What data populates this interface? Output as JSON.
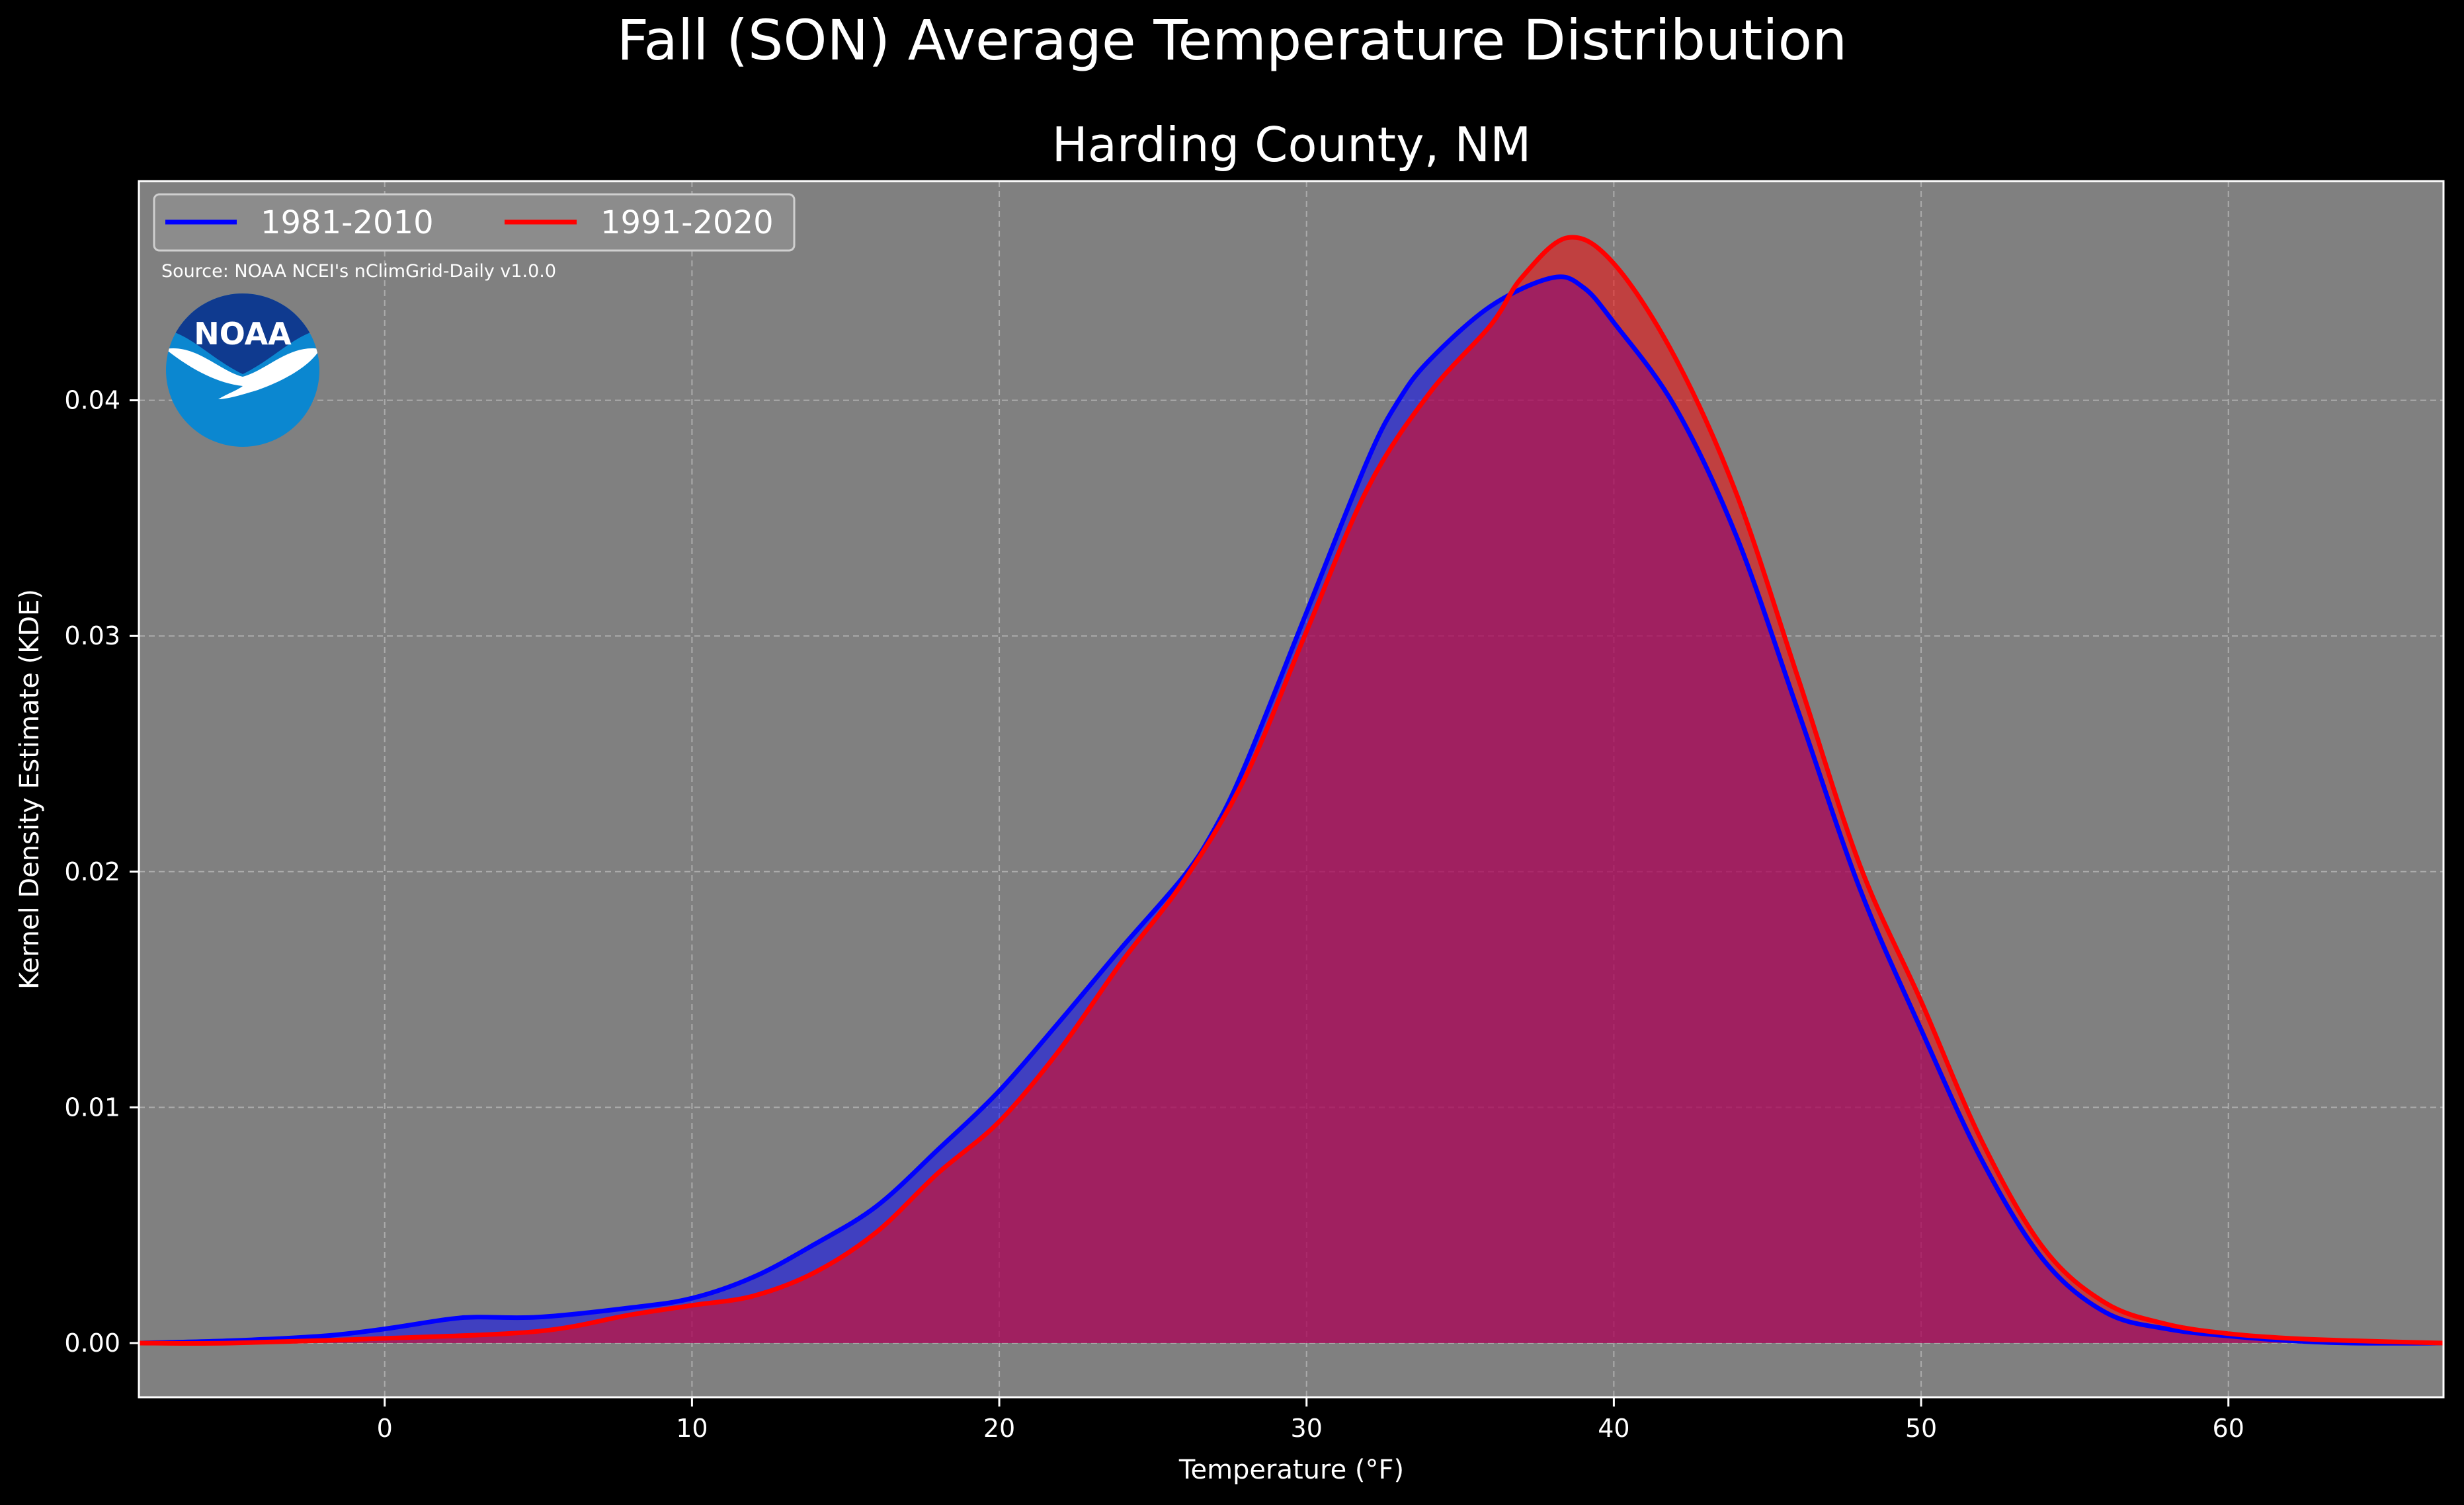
{
  "figure": {
    "suptitle": "Fall (SON) Average Temperature Distribution",
    "subtitle": "Harding County, NM",
    "source_note": "Source: NOAA NCEI's nClimGrid-Daily v1.0.0",
    "logo_text": "NOAA"
  },
  "colors": {
    "figure_bg": "#000000",
    "plot_bg": "#808080",
    "series_1981_2010": "#0000ff",
    "series_1991_2020": "#ff0000",
    "noaa_dark_blue": "#0f3a8f",
    "noaa_light_blue": "#0b87d0"
  },
  "chart_data": {
    "type": "area",
    "title": "Harding County, NM",
    "xlabel": "Temperature ($^\\circ$F)",
    "ylabel": "Kernel Density Estimate (KDE)",
    "xlim": [
      -8,
      67
    ],
    "ylim": [
      -0.0023,
      0.0493
    ],
    "xticks": [
      0,
      10,
      20,
      30,
      40,
      50,
      60
    ],
    "xtick_labels": [
      "0",
      "10",
      "20",
      "30",
      "40",
      "50",
      "60"
    ],
    "yticks": [
      0,
      0.01,
      0.02,
      0.03,
      0.04
    ],
    "ytick_labels": [
      "0.00",
      "0.01",
      "0.02",
      "0.03",
      "0.04"
    ],
    "grid": true,
    "legend_position": "top-left",
    "series": [
      {
        "name": "1981-2010",
        "color": "#0000ff",
        "x": [
          -8,
          -5,
          -2,
          0,
          2,
          3,
          5,
          8,
          10,
          12,
          14,
          16,
          18,
          20,
          22,
          24,
          26,
          27,
          28,
          30,
          32,
          33,
          34,
          36,
          38,
          39,
          40,
          42,
          44,
          46,
          48,
          50,
          52,
          54,
          56,
          58,
          60,
          62,
          64,
          67
        ],
        "y": [
          0,
          0.0001,
          0.0003,
          0.0006,
          0.001,
          0.0011,
          0.0011,
          0.0015,
          0.0019,
          0.0028,
          0.0042,
          0.0058,
          0.0082,
          0.0107,
          0.0137,
          0.0168,
          0.0198,
          0.0218,
          0.0245,
          0.031,
          0.0375,
          0.04,
          0.0417,
          0.044,
          0.0452,
          0.0448,
          0.0433,
          0.0397,
          0.0342,
          0.0268,
          0.0193,
          0.0133,
          0.0077,
          0.0035,
          0.0013,
          0.0006,
          0.0003,
          0.0001,
          0.0,
          0
        ]
      },
      {
        "name": "1991-2020",
        "color": "#ff0000",
        "x": [
          -8,
          -5,
          0,
          5,
          8,
          10,
          12,
          14,
          16,
          18,
          20,
          22,
          24,
          26,
          28,
          30,
          32,
          34,
          36,
          37,
          38.5,
          40,
          42,
          44,
          46,
          48,
          50,
          52,
          54,
          56,
          58,
          60,
          62,
          64,
          67
        ],
        "y": [
          0,
          0.0,
          0.0002,
          0.0005,
          0.0012,
          0.0016,
          0.002,
          0.003,
          0.0047,
          0.0072,
          0.0094,
          0.0125,
          0.0162,
          0.0196,
          0.024,
          0.0302,
          0.0363,
          0.0403,
          0.0432,
          0.0452,
          0.0469,
          0.0458,
          0.0418,
          0.036,
          0.0282,
          0.0203,
          0.0145,
          0.0085,
          0.004,
          0.0017,
          0.0008,
          0.0004,
          0.0002,
          0.0001,
          0
        ]
      }
    ]
  }
}
